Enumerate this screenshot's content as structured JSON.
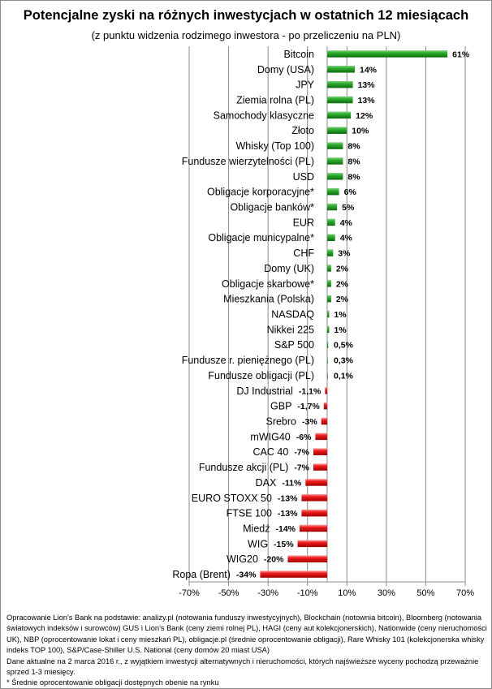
{
  "chart_data": {
    "type": "bar",
    "orientation": "horizontal",
    "title": "Potencjalne zyski na różnych inwestycjach w ostatnich 12 miesiącach",
    "subtitle": "(z punktu  widzenia rodzimego  inwestora - po przeliczeniu na PLN)",
    "xlim": [
      -70,
      70
    ],
    "xticks": [
      -70,
      -50,
      -30,
      -10,
      10,
      30,
      50,
      70
    ],
    "xtick_labels": [
      "-70%",
      "-50%",
      "-30%",
      "-10%",
      "10%",
      "30%",
      "50%",
      "70%"
    ],
    "grid": true,
    "positive_color": "#1f9e1f",
    "negative_color": "#e01010",
    "categories": [
      "Bitcoin",
      "Domy (USA)",
      "JPY",
      "Ziemia rolna (PL)",
      "Samochody klasyczne",
      "Złoto",
      "Whisky (Top 100)",
      "Fundusze wierzytelności (PL)",
      "USD",
      "Obligacje korporacyjne*",
      "Obligacje banków*",
      "EUR",
      "Obligacje municypalne*",
      "CHF",
      "Domy (UK)",
      "Obligacje skarbowe*",
      "Mieszkania (Polska)",
      "NASDAQ",
      "Nikkei 225",
      "S&P 500",
      "Fundusze r. pieniężnego (PL)",
      "Fundusze obligacji (PL)",
      "DJ Industrial",
      "GBP",
      "Srebro",
      "mWIG40",
      "CAC 40",
      "Fundusze akcji (PL)",
      "DAX",
      "EURO STOXX 50",
      "FTSE 100",
      "Miedź",
      "WIG",
      "WIG20",
      "Ropa (Brent)"
    ],
    "values": [
      61,
      14,
      13,
      13,
      12,
      10,
      8,
      8,
      8,
      6,
      5,
      4,
      4,
      3,
      2,
      2,
      2,
      1,
      1,
      0.5,
      0.3,
      0.1,
      -1.1,
      -1.7,
      -3,
      -6,
      -7,
      -7,
      -11,
      -13,
      -13,
      -14,
      -15,
      -20,
      -34
    ],
    "data_labels": [
      "61%",
      "14%",
      "13%",
      "13%",
      "12%",
      "10%",
      "8%",
      "8%",
      "8%",
      "6%",
      "5%",
      "4%",
      "4%",
      "3%",
      "2%",
      "2%",
      "2%",
      "1%",
      "1%",
      "0,5%",
      "0,3%",
      "0,1%",
      "-1,1%",
      "-1,7%",
      "-3%",
      "-6%",
      "-7%",
      "-7%",
      "-11%",
      "-13%",
      "-13%",
      "-14%",
      "-15%",
      "-20%",
      "-34%"
    ]
  },
  "footer": {
    "sources": "Opracowanie Lion's Bank na podstawie: analizy.pl (notowania funduszy inwestycyjnych), Blockchain (notownia bitcoin), Bloomberg (notowania światowych indeksów i surowców) GUS i Lion's Bank (ceny ziemi rolnej PL), HAGI (ceny aut kolekcjonerskich), Nationwide (ceny nieruchomości UK), NBP (oprocentowanie lokat i ceny mieszkań PL), obligacje.pl (średnie oprocentowanie obligacji), Rare Whisky 101 (kolekcjonerska whisky indeks TOP 100), S&P/Case-Shiller U.S. National (ceny domów 20 miast USA)",
    "date_note": "Dane aktualne na 2 marca 2016 r., z wyjątkiem inwestycji alternatywnych i nieruchomości, których najświeższe wyceny pochodzą przeważnie sprzed 1-3 miesięcy.",
    "asterisk_note": "* Średnie oprocentowanie obligacji dostępnych obenie na rynku"
  }
}
